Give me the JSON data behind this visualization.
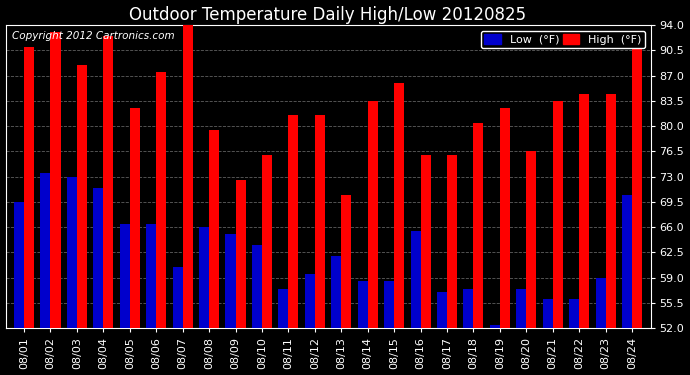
{
  "title": "Outdoor Temperature Daily High/Low 20120825",
  "copyright_text": "Copyright 2012 Cartronics.com",
  "legend_low": "Low  (°F)",
  "legend_high": "High  (°F)",
  "dates": [
    "08/01",
    "08/02",
    "08/03",
    "08/04",
    "08/05",
    "08/06",
    "08/07",
    "08/08",
    "08/09",
    "08/10",
    "08/11",
    "08/12",
    "08/13",
    "08/14",
    "08/15",
    "08/16",
    "08/17",
    "08/18",
    "08/19",
    "08/20",
    "08/21",
    "08/22",
    "08/23",
    "08/24"
  ],
  "highs": [
    91.0,
    93.0,
    88.5,
    92.5,
    82.5,
    87.5,
    95.0,
    79.5,
    72.5,
    76.0,
    81.5,
    81.5,
    70.5,
    83.5,
    86.0,
    76.0,
    76.0,
    80.5,
    82.5,
    76.5,
    83.5,
    84.5,
    84.5,
    91.5
  ],
  "lows": [
    69.5,
    73.5,
    73.0,
    71.5,
    66.5,
    66.5,
    60.5,
    66.0,
    65.0,
    63.5,
    57.5,
    59.5,
    62.0,
    58.5,
    58.5,
    65.5,
    57.0,
    57.5,
    52.5,
    57.5,
    56.0,
    56.0,
    59.0,
    70.5
  ],
  "bar_color_high": "#FF0000",
  "bar_color_low": "#0000CC",
  "background_color": "#000000",
  "plot_bg_color": "#000000",
  "grid_color": "#888888",
  "text_color": "#FFFFFF",
  "ylim_min": 52.0,
  "ylim_max": 94.0,
  "yticks": [
    52.0,
    55.5,
    59.0,
    62.5,
    66.0,
    69.5,
    73.0,
    76.5,
    80.0,
    83.5,
    87.0,
    90.5,
    94.0
  ],
  "title_fontsize": 12,
  "tick_fontsize": 8,
  "legend_fontsize": 8,
  "copyright_fontsize": 7.5,
  "bar_width": 0.38
}
